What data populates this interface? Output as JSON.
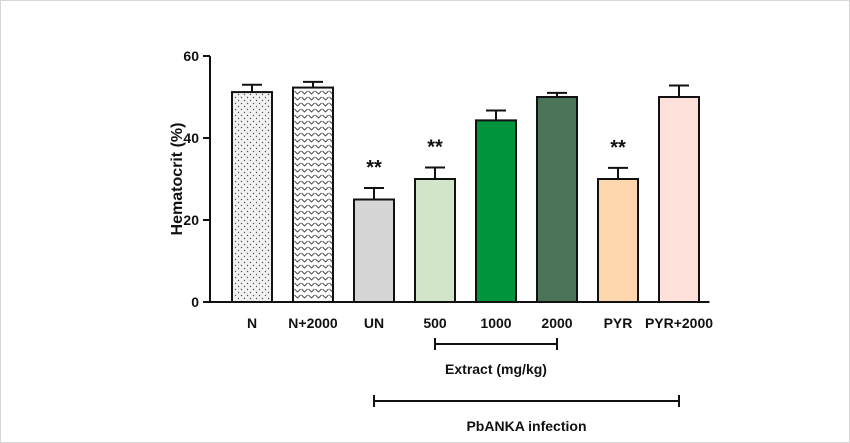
{
  "chart_data": {
    "type": "bar",
    "title": "",
    "xlabel": "",
    "ylabel": "Hematocrit (%)",
    "ylim": [
      0,
      60
    ],
    "yticks": [
      0,
      20,
      40,
      60
    ],
    "categories": [
      "N",
      "N+2000",
      "UN",
      "500",
      "1000",
      "2000",
      "PYR",
      "PYR+2000"
    ],
    "values": [
      51.2,
      52.3,
      25.0,
      30.0,
      44.3,
      50.0,
      30.0,
      50.0
    ],
    "errors": [
      1.8,
      1.4,
      2.8,
      2.8,
      2.4,
      1.0,
      2.7,
      2.8
    ],
    "annotations": [
      "",
      "",
      "**",
      "**",
      "",
      "",
      "**",
      ""
    ],
    "bar_styles": [
      {
        "fill": "#f2f2f2",
        "pattern": "dots"
      },
      {
        "fill": "#ffffff",
        "pattern": "chevrons"
      },
      {
        "fill": "#d6d6d6",
        "pattern": "none"
      },
      {
        "fill": "#d3e5c9",
        "pattern": "none"
      },
      {
        "fill": "#00953d",
        "pattern": "none"
      },
      {
        "fill": "#4a7358",
        "pattern": "none"
      },
      {
        "fill": "#fdd6ad",
        "pattern": "none"
      },
      {
        "fill": "#fde0d9",
        "pattern": "none"
      }
    ],
    "groups": [
      {
        "label": "Extract (mg/kg)",
        "from": 3,
        "to": 5
      },
      {
        "label": "PbANKA infection",
        "from": 2,
        "to": 7
      }
    ],
    "grid": false,
    "legend": "none"
  }
}
